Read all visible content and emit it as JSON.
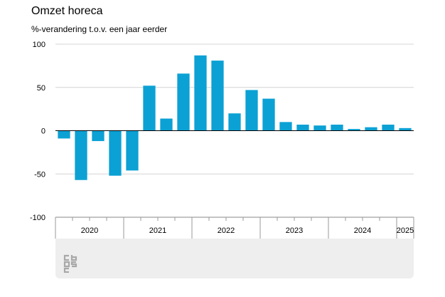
{
  "chart_data": {
    "type": "bar",
    "title": "Omzet horeca",
    "ylabel": "%-verandering t.o.v. een jaar eerder",
    "xlabel": "",
    "ylim": [
      -100,
      100
    ],
    "yticks": [
      100,
      50,
      0,
      -50,
      -100
    ],
    "grid": true,
    "bar_color": "#0ba1d4",
    "quarter_ticks": [
      "2020 Q1",
      "2020 Q2",
      "2020 Q3",
      "2020 Q4",
      "2021 Q1",
      "2021 Q2",
      "2021 Q3",
      "2021 Q4",
      "2022 Q1",
      "2022 Q2",
      "2022 Q3",
      "2022 Q4",
      "2023 Q1",
      "2023 Q2",
      "2023 Q3",
      "2023 Q4",
      "2024 Q1",
      "2024 Q2",
      "2024 Q3",
      "2024 Q4",
      "2025 Q1"
    ],
    "values": [
      -9,
      -57,
      -12,
      -52,
      -46,
      52,
      14,
      66,
      87,
      81,
      20,
      47,
      37,
      10,
      7,
      6,
      7,
      2,
      4,
      7,
      3
    ],
    "year_labels": [
      "2020",
      "2021",
      "2022",
      "2023",
      "2024",
      "2025"
    ]
  }
}
